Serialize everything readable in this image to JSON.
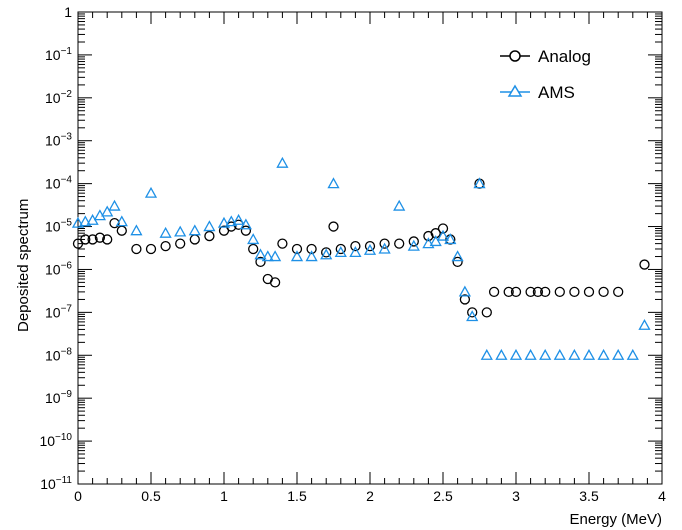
{
  "chart_data": {
    "type": "scatter",
    "title": "",
    "xlabel": "Energy (MeV)",
    "ylabel": "Deposited spectrum",
    "xlim": [
      0,
      4
    ],
    "ylim": [
      1e-11,
      1
    ],
    "y_scale": "log",
    "grid": false,
    "legend_position": "top-right",
    "x_tick_labels": [
      "0",
      "0.5",
      "1",
      "1.5",
      "2",
      "2.5",
      "3",
      "3.5",
      "4"
    ],
    "x_ticks": [
      0,
      0.5,
      1,
      1.5,
      2,
      2.5,
      3,
      3.5,
      4
    ],
    "y_ticks": [
      {
        "value": 1,
        "base": "1",
        "exp": ""
      },
      {
        "value": 0.1,
        "base": "10",
        "exp": "−1"
      },
      {
        "value": 0.01,
        "base": "10",
        "exp": "−2"
      },
      {
        "value": 0.001,
        "base": "10",
        "exp": "−3"
      },
      {
        "value": 0.0001,
        "base": "10",
        "exp": "−4"
      },
      {
        "value": 1e-05,
        "base": "10",
        "exp": "−5"
      },
      {
        "value": 1e-06,
        "base": "10",
        "exp": "−6"
      },
      {
        "value": 1e-07,
        "base": "10",
        "exp": "−7"
      },
      {
        "value": 1e-08,
        "base": "10",
        "exp": "−8"
      },
      {
        "value": 1e-09,
        "base": "10",
        "exp": "−9"
      },
      {
        "value": 1e-10,
        "base": "10",
        "exp": "−10"
      },
      {
        "value": 1e-11,
        "base": "10",
        "exp": "−11"
      }
    ],
    "series": [
      {
        "name": "Analog",
        "color": "#000000",
        "marker": "open-circle",
        "x": [
          0.0,
          0.05,
          0.1,
          0.15,
          0.2,
          0.25,
          0.3,
          0.4,
          0.5,
          0.6,
          0.7,
          0.8,
          0.9,
          1.0,
          1.05,
          1.1,
          1.15,
          1.2,
          1.25,
          1.3,
          1.35,
          1.4,
          1.5,
          1.6,
          1.7,
          1.75,
          1.8,
          1.9,
          2.0,
          2.1,
          2.2,
          2.3,
          2.4,
          2.45,
          2.5,
          2.55,
          2.6,
          2.65,
          2.7,
          2.75,
          2.8,
          2.85,
          2.95,
          3.0,
          3.1,
          3.15,
          3.2,
          3.3,
          3.4,
          3.5,
          3.6,
          3.7,
          3.88
        ],
        "y": [
          4e-06,
          5e-06,
          5e-06,
          5.5e-06,
          5e-06,
          1.2e-05,
          8e-06,
          3e-06,
          3e-06,
          3.5e-06,
          4e-06,
          5e-06,
          6e-06,
          8e-06,
          1e-05,
          1.1e-05,
          8e-06,
          3e-06,
          1.5e-06,
          6e-07,
          5e-07,
          4e-06,
          3e-06,
          3e-06,
          2.5e-06,
          1e-05,
          3e-06,
          3.5e-06,
          3.5e-06,
          4e-06,
          4e-06,
          4.5e-06,
          6e-06,
          7e-06,
          9e-06,
          5e-06,
          1.5e-06,
          2e-07,
          1e-07,
          0.0001,
          1e-07,
          3e-07,
          3e-07,
          3e-07,
          3e-07,
          3e-07,
          3e-07,
          3e-07,
          3e-07,
          3e-07,
          3e-07,
          3e-07,
          1.3e-06
        ]
      },
      {
        "name": "AMS",
        "color": "#1e90e6",
        "marker": "open-triangle",
        "x": [
          0.0,
          0.05,
          0.1,
          0.15,
          0.2,
          0.25,
          0.3,
          0.4,
          0.5,
          0.6,
          0.7,
          0.8,
          0.9,
          1.0,
          1.05,
          1.1,
          1.15,
          1.2,
          1.25,
          1.3,
          1.35,
          1.4,
          1.5,
          1.6,
          1.7,
          1.75,
          1.8,
          1.9,
          2.0,
          2.1,
          2.2,
          2.3,
          2.4,
          2.45,
          2.5,
          2.55,
          2.6,
          2.65,
          2.7,
          2.75,
          2.8,
          2.9,
          3.0,
          3.1,
          3.2,
          3.3,
          3.4,
          3.5,
          3.6,
          3.7,
          3.8,
          3.88
        ],
        "y": [
          1.2e-05,
          1.3e-05,
          1.4e-05,
          1.8e-05,
          2.2e-05,
          3e-05,
          1.3e-05,
          8e-06,
          6e-05,
          7e-06,
          7.5e-06,
          8e-06,
          1e-05,
          1.2e-05,
          1.3e-05,
          1.4e-05,
          1.1e-05,
          5e-06,
          2.2e-06,
          2e-06,
          2e-06,
          0.0003,
          2e-06,
          2e-06,
          2.2e-06,
          0.0001,
          2.5e-06,
          2.5e-06,
          2.8e-06,
          3e-06,
          3e-05,
          3.5e-06,
          4e-06,
          4.5e-06,
          6e-06,
          5e-06,
          2e-06,
          3e-07,
          8e-08,
          0.0001,
          1e-08,
          1e-08,
          1e-08,
          1e-08,
          1e-08,
          1e-08,
          1e-08,
          1e-08,
          1e-08,
          1e-08,
          1e-08,
          5e-08
        ]
      }
    ]
  }
}
